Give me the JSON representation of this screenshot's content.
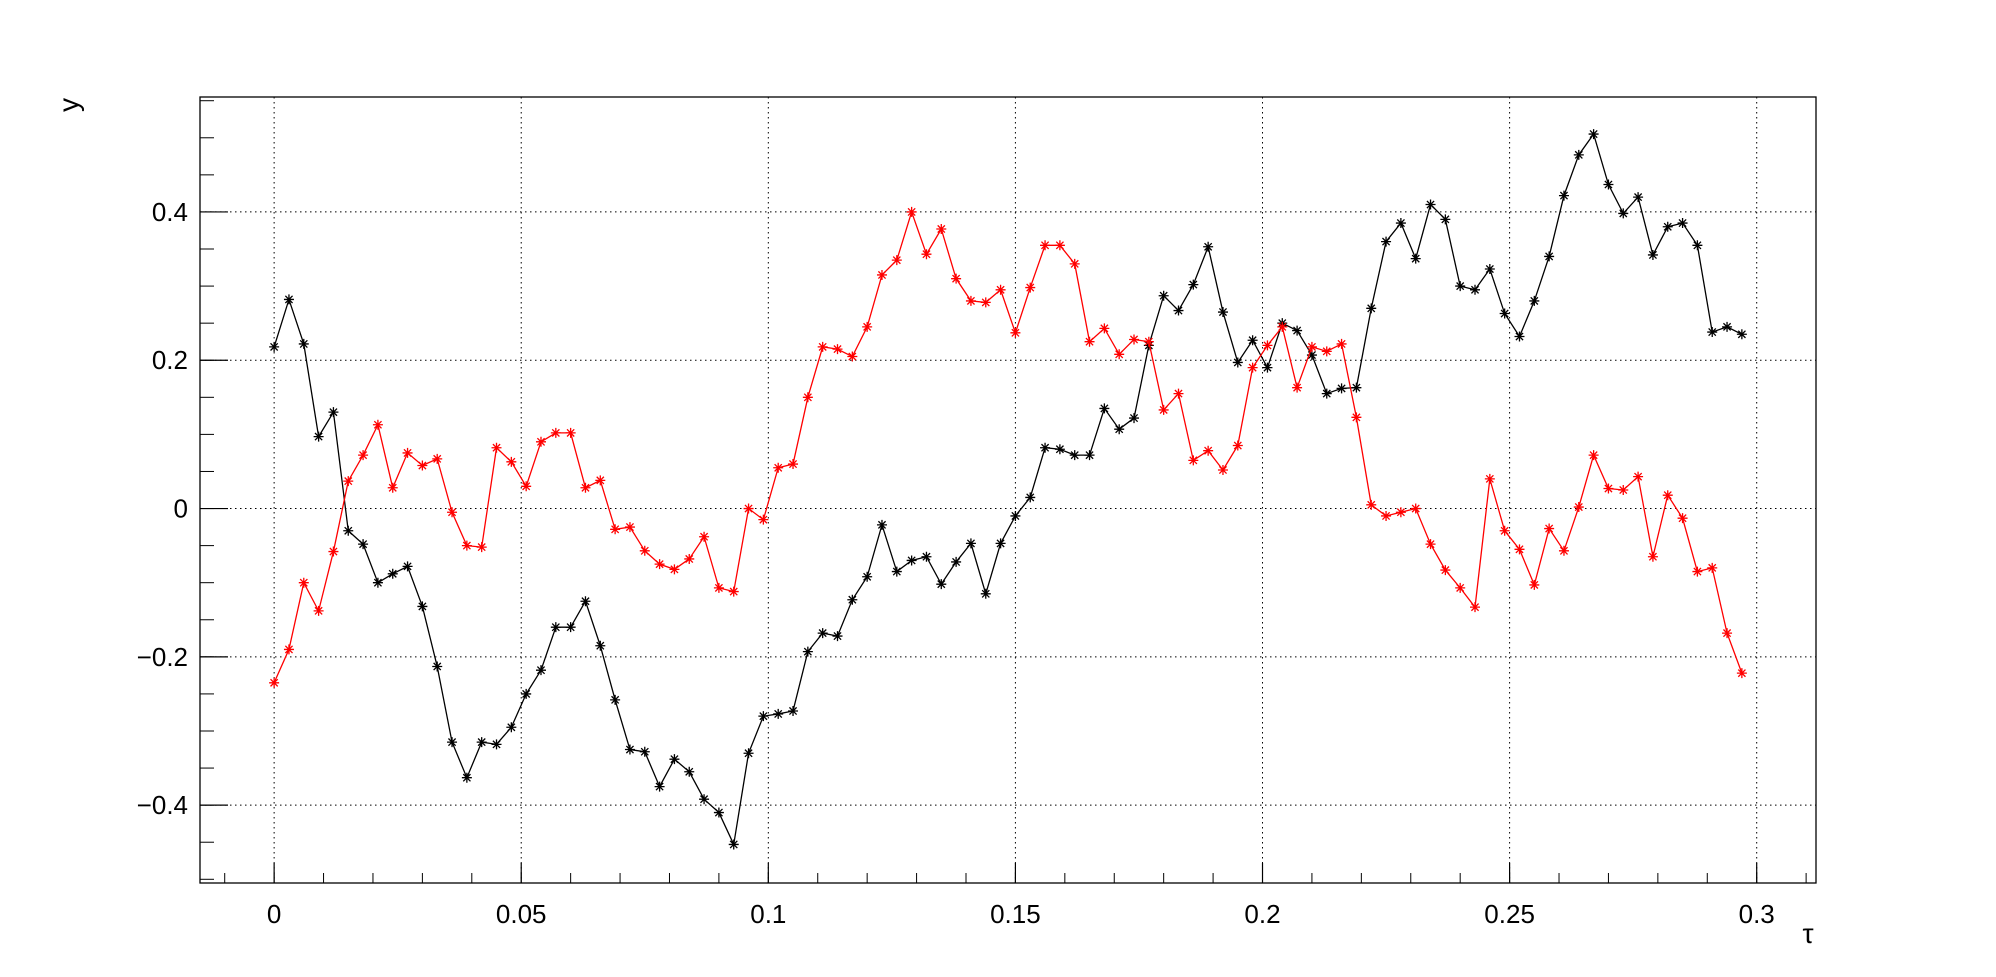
{
  "chart_data": {
    "type": "line",
    "title": "",
    "xlabel": "τ",
    "ylabel": "y",
    "xlim": [
      -0.015,
      0.312
    ],
    "ylim": [
      -0.505,
      0.555
    ],
    "grid": true,
    "legend": "none",
    "x_ticks": [
      0,
      0.05,
      0.1,
      0.15,
      0.2,
      0.25,
      0.3
    ],
    "x_tick_labels": [
      "0",
      "0.05",
      "0.1",
      "0.15",
      "0.2",
      "0.25",
      "0.3"
    ],
    "y_ticks": [
      -0.4,
      -0.2,
      0,
      0.2,
      0.4
    ],
    "y_tick_labels": [
      "−0.4",
      "−0.2",
      "0",
      "0.2",
      "0.4"
    ],
    "marker": "asterisk",
    "series": [
      {
        "color": "#000000",
        "x": [
          0,
          0.003,
          0.006,
          0.009,
          0.012,
          0.015,
          0.018,
          0.021,
          0.024,
          0.027,
          0.03,
          0.033,
          0.036,
          0.039,
          0.042,
          0.045,
          0.048,
          0.051,
          0.054,
          0.057,
          0.06,
          0.063,
          0.066,
          0.069,
          0.072,
          0.075,
          0.078,
          0.081,
          0.084,
          0.087,
          0.09,
          0.093,
          0.096,
          0.099,
          0.102,
          0.105,
          0.108,
          0.111,
          0.114,
          0.117,
          0.12,
          0.123,
          0.126,
          0.129,
          0.132,
          0.135,
          0.138,
          0.141,
          0.144,
          0.147,
          0.15,
          0.153,
          0.156,
          0.159,
          0.162,
          0.165,
          0.168,
          0.171,
          0.174,
          0.177,
          0.18,
          0.183,
          0.186,
          0.189,
          0.192,
          0.195,
          0.198,
          0.201,
          0.204,
          0.207,
          0.21,
          0.213,
          0.216,
          0.219,
          0.222,
          0.225,
          0.228,
          0.231,
          0.234,
          0.237,
          0.24,
          0.243,
          0.246,
          0.249,
          0.252,
          0.255,
          0.258,
          0.261,
          0.264,
          0.267,
          0.27,
          0.273,
          0.276,
          0.279,
          0.282,
          0.285,
          0.288,
          0.291,
          0.294,
          0.297
        ],
        "y": [
          0.218,
          0.282,
          0.222,
          0.097,
          0.13,
          -0.03,
          -0.048,
          -0.1,
          -0.088,
          -0.078,
          -0.132,
          -0.213,
          -0.315,
          -0.363,
          -0.315,
          -0.318,
          -0.295,
          -0.25,
          -0.218,
          -0.16,
          -0.16,
          -0.125,
          -0.185,
          -0.258,
          -0.325,
          -0.328,
          -0.375,
          -0.338,
          -0.355,
          -0.392,
          -0.41,
          -0.453,
          -0.33,
          -0.28,
          -0.277,
          -0.273,
          -0.193,
          -0.168,
          -0.172,
          -0.123,
          -0.092,
          -0.022,
          -0.085,
          -0.07,
          -0.065,
          -0.102,
          -0.072,
          -0.047,
          -0.115,
          -0.047,
          -0.01,
          0.015,
          0.082,
          0.08,
          0.072,
          0.072,
          0.135,
          0.107,
          0.122,
          0.22,
          0.287,
          0.267,
          0.302,
          0.353,
          0.265,
          0.197,
          0.227,
          0.19,
          0.25,
          0.24,
          0.207,
          0.155,
          0.162,
          0.163,
          0.27,
          0.36,
          0.385,
          0.337,
          0.41,
          0.39,
          0.3,
          0.295,
          0.323,
          0.263,
          0.232,
          0.28,
          0.34,
          0.422,
          0.477,
          0.505,
          0.437,
          0.398,
          0.42,
          0.342,
          0.38,
          0.385,
          0.355,
          0.238,
          0.245,
          0.235
        ]
      },
      {
        "color": "#ff0000",
        "x": [
          0,
          0.003,
          0.006,
          0.009,
          0.012,
          0.015,
          0.018,
          0.021,
          0.024,
          0.027,
          0.03,
          0.033,
          0.036,
          0.039,
          0.042,
          0.045,
          0.048,
          0.051,
          0.054,
          0.057,
          0.06,
          0.063,
          0.066,
          0.069,
          0.072,
          0.075,
          0.078,
          0.081,
          0.084,
          0.087,
          0.09,
          0.093,
          0.096,
          0.099,
          0.102,
          0.105,
          0.108,
          0.111,
          0.114,
          0.117,
          0.12,
          0.123,
          0.126,
          0.129,
          0.132,
          0.135,
          0.138,
          0.141,
          0.144,
          0.147,
          0.15,
          0.153,
          0.156,
          0.159,
          0.162,
          0.165,
          0.168,
          0.171,
          0.174,
          0.177,
          0.18,
          0.183,
          0.186,
          0.189,
          0.192,
          0.195,
          0.198,
          0.201,
          0.204,
          0.207,
          0.21,
          0.213,
          0.216,
          0.219,
          0.222,
          0.225,
          0.228,
          0.231,
          0.234,
          0.237,
          0.24,
          0.243,
          0.246,
          0.249,
          0.252,
          0.255,
          0.258,
          0.261,
          0.264,
          0.267,
          0.27,
          0.273,
          0.276,
          0.279,
          0.282,
          0.285,
          0.288,
          0.291,
          0.294,
          0.297
        ],
        "y": [
          -0.235,
          -0.19,
          -0.1,
          -0.138,
          -0.058,
          0.037,
          0.072,
          0.113,
          0.028,
          0.075,
          0.058,
          0.067,
          -0.005,
          -0.05,
          -0.052,
          0.082,
          0.063,
          0.03,
          0.09,
          0.102,
          0.102,
          0.028,
          0.038,
          -0.028,
          -0.025,
          -0.057,
          -0.075,
          -0.082,
          -0.068,
          -0.038,
          -0.107,
          -0.112,
          0.0,
          -0.015,
          0.055,
          0.06,
          0.15,
          0.218,
          0.215,
          0.205,
          0.245,
          0.315,
          0.335,
          0.4,
          0.343,
          0.377,
          0.31,
          0.28,
          0.278,
          0.295,
          0.237,
          0.298,
          0.355,
          0.355,
          0.33,
          0.225,
          0.243,
          0.208,
          0.228,
          0.225,
          0.133,
          0.155,
          0.065,
          0.078,
          0.052,
          0.085,
          0.19,
          0.22,
          0.245,
          0.163,
          0.218,
          0.212,
          0.222,
          0.123,
          0.005,
          -0.01,
          -0.005,
          0.0,
          -0.048,
          -0.083,
          -0.107,
          -0.133,
          0.04,
          -0.03,
          -0.055,
          -0.103,
          -0.027,
          -0.057,
          0.002,
          0.072,
          0.027,
          0.025,
          0.043,
          -0.065,
          0.018,
          -0.013,
          -0.085,
          -0.08,
          -0.168,
          -0.222
        ]
      }
    ]
  }
}
